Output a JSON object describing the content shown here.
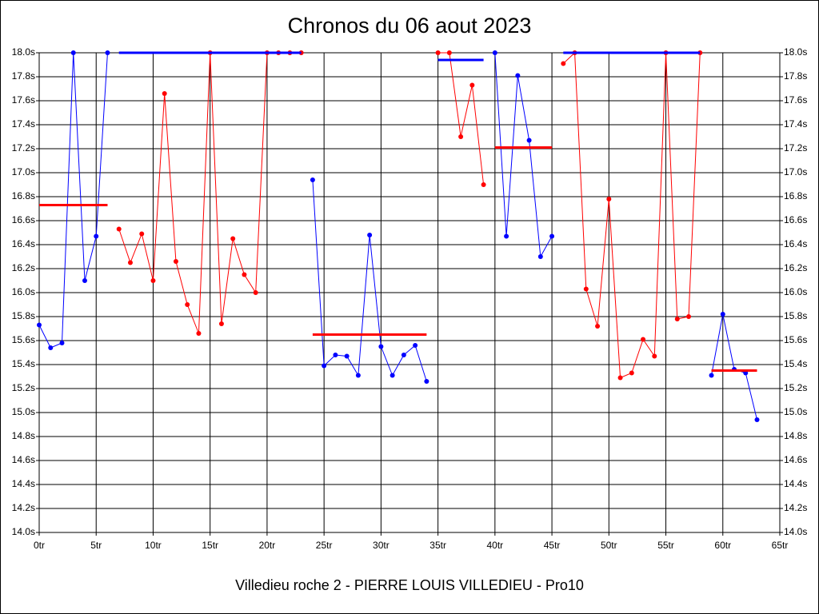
{
  "chart_data": {
    "type": "line",
    "title": "Chronos du 06 aout 2023",
    "x_label": "Villedieu roche 2 - PIERRE LOUIS VILLEDIEU - Pro10",
    "xlim": [
      0,
      65
    ],
    "ylim": [
      14,
      18
    ],
    "grid": true,
    "xticks": [
      {
        "value": 0,
        "label": "0tr"
      },
      {
        "value": 5,
        "label": "5tr"
      },
      {
        "value": 10,
        "label": "10tr"
      },
      {
        "value": 15,
        "label": "15tr"
      },
      {
        "value": 20,
        "label": "20tr"
      },
      {
        "value": 25,
        "label": "25tr"
      },
      {
        "value": 30,
        "label": "30tr"
      },
      {
        "value": 35,
        "label": "35tr"
      },
      {
        "value": 40,
        "label": "40tr"
      },
      {
        "value": 45,
        "label": "45tr"
      },
      {
        "value": 50,
        "label": "50tr"
      },
      {
        "value": 55,
        "label": "55tr"
      },
      {
        "value": 60,
        "label": "60tr"
      },
      {
        "value": 65,
        "label": "65tr"
      }
    ],
    "yticks": [
      {
        "value": 14.0,
        "label": "14.0s"
      },
      {
        "value": 14.2,
        "label": "14.2s"
      },
      {
        "value": 14.4,
        "label": "14.4s"
      },
      {
        "value": 14.6,
        "label": "14.6s"
      },
      {
        "value": 14.8,
        "label": "14.8s"
      },
      {
        "value": 15.0,
        "label": "15.0s"
      },
      {
        "value": 15.2,
        "label": "15.2s"
      },
      {
        "value": 15.4,
        "label": "15.4s"
      },
      {
        "value": 15.6,
        "label": "15.6s"
      },
      {
        "value": 15.8,
        "label": "15.8s"
      },
      {
        "value": 16.0,
        "label": "16.0s"
      },
      {
        "value": 16.2,
        "label": "16.2s"
      },
      {
        "value": 16.4,
        "label": "16.4s"
      },
      {
        "value": 16.6,
        "label": "16.6s"
      },
      {
        "value": 16.8,
        "label": "16.8s"
      },
      {
        "value": 17.0,
        "label": "17.0s"
      },
      {
        "value": 17.2,
        "label": "17.2s"
      },
      {
        "value": 17.4,
        "label": "17.4s"
      },
      {
        "value": 17.6,
        "label": "17.6s"
      },
      {
        "value": 17.8,
        "label": "17.8s"
      },
      {
        "value": 18.0,
        "label": "18.0s"
      }
    ],
    "series": [
      {
        "color": "#0000ff",
        "x": [
          0,
          1,
          2,
          3,
          4,
          5,
          6
        ],
        "values": [
          15.73,
          15.54,
          15.58,
          18.0,
          16.1,
          16.47,
          18.0
        ]
      },
      {
        "color": "#ff0000",
        "x": [
          7,
          8,
          9,
          10,
          11,
          12,
          13,
          14,
          15,
          16,
          17,
          18,
          19,
          20,
          21,
          22,
          23
        ],
        "values": [
          16.53,
          16.25,
          16.49,
          16.1,
          17.66,
          16.26,
          15.9,
          15.66,
          18.0,
          15.74,
          16.45,
          16.15,
          16.0,
          18.0,
          18.0,
          18.0,
          18.0
        ]
      },
      {
        "color": "#0000ff",
        "x": [
          24,
          25,
          26,
          27,
          28,
          29,
          30,
          31,
          32,
          33,
          34
        ],
        "values": [
          16.94,
          15.39,
          15.48,
          15.47,
          15.31,
          16.48,
          15.55,
          15.31,
          15.48,
          15.56,
          15.26
        ]
      },
      {
        "color": "#ff0000",
        "x": [
          35,
          36,
          37,
          38,
          39
        ],
        "values": [
          18.0,
          18.0,
          17.3,
          17.73,
          16.9
        ]
      },
      {
        "color": "#0000ff",
        "x": [
          40,
          41,
          42,
          43,
          44,
          45
        ],
        "values": [
          18.0,
          16.47,
          17.81,
          17.27,
          16.3,
          16.47
        ]
      },
      {
        "color": "#ff0000",
        "x": [
          46,
          47,
          48,
          49,
          50,
          51,
          52,
          53,
          54,
          55,
          56,
          57,
          58
        ],
        "values": [
          17.91,
          18.0,
          16.03,
          15.72,
          16.78,
          15.29,
          15.33,
          15.61,
          15.47,
          18.0,
          15.78,
          15.8,
          18.0
        ]
      },
      {
        "color": "#0000ff",
        "x": [
          59,
          60,
          61,
          62,
          63
        ],
        "values": [
          15.31,
          15.82,
          15.36,
          15.33,
          14.94
        ]
      }
    ],
    "mean_lines": [
      {
        "color": "#ff0000",
        "x": [
          0,
          6
        ],
        "value": 16.73
      },
      {
        "color": "#0000ff",
        "x": [
          7,
          23
        ],
        "value": 18.0
      },
      {
        "color": "#ff0000",
        "x": [
          24,
          34
        ],
        "value": 15.65
      },
      {
        "color": "#0000ff",
        "x": [
          35,
          39
        ],
        "value": 17.94
      },
      {
        "color": "#ff0000",
        "x": [
          40,
          45
        ],
        "value": 17.21
      },
      {
        "color": "#0000ff",
        "x": [
          46,
          58
        ],
        "value": 18.0
      },
      {
        "color": "#ff0000",
        "x": [
          59,
          63
        ],
        "value": 15.35
      }
    ]
  }
}
